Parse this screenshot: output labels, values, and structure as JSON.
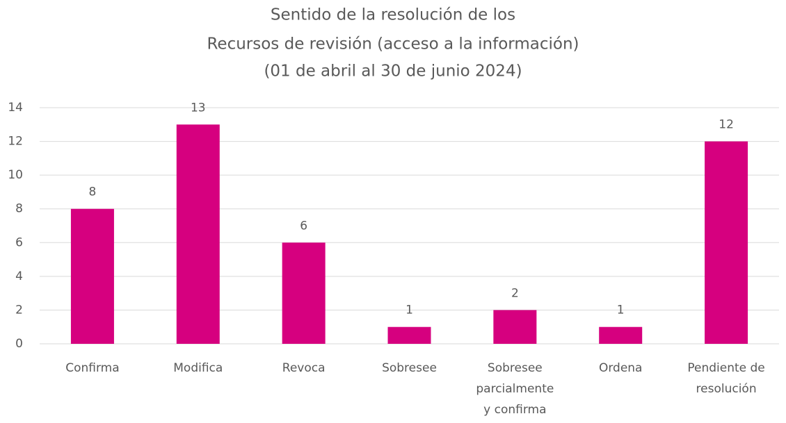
{
  "chart_data": {
    "type": "bar",
    "title": [
      "Sentido de la resolución de los",
      "Recursos de revisión (acceso a la información)",
      "(01 de abril al 30 de junio 2024)"
    ],
    "categories": [
      "Confirma",
      "Modifica",
      "Revoca",
      "Sobresee",
      "Sobresee parcialmente y confirma",
      "Ordena",
      "Pendiente de resolución"
    ],
    "values": [
      8,
      13,
      6,
      1,
      2,
      1,
      12
    ],
    "color": "#d6007f",
    "ylim": [
      0,
      14
    ],
    "yticks": [
      0,
      2,
      4,
      6,
      8,
      10,
      12,
      14
    ],
    "grid": true
  }
}
